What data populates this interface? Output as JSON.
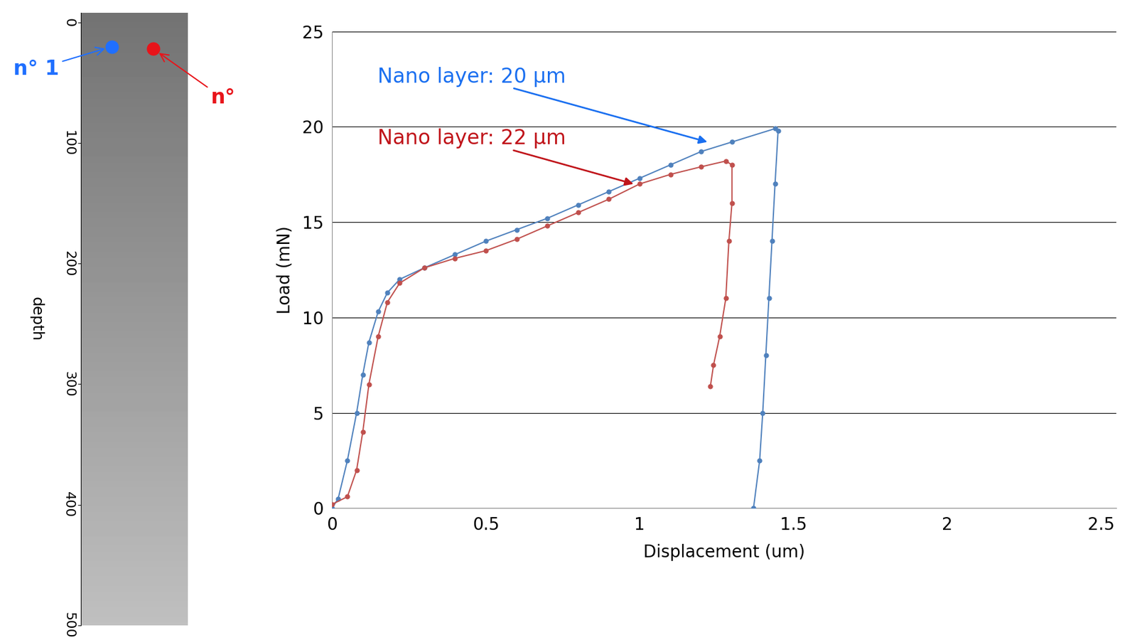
{
  "chart_data": [
    {
      "type": "scatter",
      "ylabel": "depth",
      "xlim": [
        0,
        1
      ],
      "ylim": [
        500,
        -8
      ],
      "yticks": [
        0,
        100,
        200,
        300,
        400,
        500
      ],
      "tick_labels": "y",
      "points": [
        {
          "label": "n° 1",
          "x": 0.29,
          "y": 20,
          "color": "#1f6fff"
        },
        {
          "label": "n°",
          "x": 0.68,
          "y": 22,
          "color": "#e8141a"
        }
      ]
    },
    {
      "type": "line",
      "xlabel": "Displacement (um)",
      "ylabel": "Load (mN)",
      "xlim": [
        0,
        2.55
      ],
      "ylim": [
        0,
        25
      ],
      "xticks": [
        0,
        0.5,
        {
          "value": 1,
          "label": "1"
        },
        1.5,
        {
          "value": 2,
          "label": "2"
        },
        2.5
      ],
      "yticks": [
        0,
        5,
        10,
        15,
        20,
        25
      ],
      "grid": "y",
      "marker": "o",
      "line_style": "solid",
      "series": [
        {
          "name": "Nano layer: 20 µm",
          "color": "#4f81bd",
          "text_color": "#1a6ff0",
          "arrow_to": [
            1.22,
            19.2
          ],
          "x": [
            0,
            0.02,
            0.05,
            0.08,
            0.1,
            0.12,
            0.15,
            0.18,
            0.22,
            0.3,
            0.4,
            0.5,
            0.6,
            0.7,
            0.8,
            0.9,
            1.0,
            1.1,
            1.2,
            1.3,
            1.44,
            1.45,
            1.44,
            1.43,
            1.42,
            1.41,
            1.4,
            1.39,
            1.37
          ],
          "y": [
            0,
            0.5,
            2.5,
            5,
            7,
            8.7,
            10.3,
            11.3,
            12,
            12.6,
            13.3,
            14,
            14.6,
            15.2,
            15.9,
            16.6,
            17.3,
            18,
            18.7,
            19.2,
            19.9,
            19.8,
            17,
            14,
            11,
            8,
            5,
            2.5,
            0
          ]
        },
        {
          "name": "Nano layer: 22 µm",
          "color": "#c0504d",
          "text_color": "#c0141a",
          "arrow_to": [
            0.98,
            17.0
          ],
          "x": [
            0,
            0.05,
            0.08,
            0.1,
            0.12,
            0.15,
            0.18,
            0.22,
            0.3,
            0.4,
            0.5,
            0.6,
            0.7,
            0.8,
            0.9,
            1.0,
            1.1,
            1.2,
            1.28,
            1.3,
            1.3,
            1.29,
            1.28,
            1.26,
            1.24,
            1.23
          ],
          "y": [
            0.2,
            0.6,
            2,
            4,
            6.5,
            9,
            10.8,
            11.8,
            12.6,
            13.1,
            13.5,
            14.1,
            14.8,
            15.5,
            16.2,
            17,
            17.5,
            17.9,
            18.2,
            18,
            16,
            14,
            11,
            9,
            7.5,
            6.4
          ]
        }
      ]
    }
  ]
}
